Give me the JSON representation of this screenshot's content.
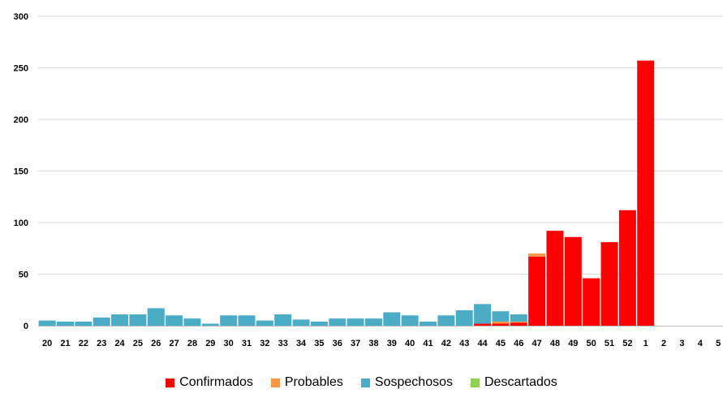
{
  "chart_data": {
    "type": "bar",
    "stacked": true,
    "title": "",
    "xlabel": "",
    "ylabel": "",
    "ylim": [
      0,
      300
    ],
    "yticks": [
      0,
      50,
      100,
      150,
      200,
      250,
      300
    ],
    "grid": true,
    "legend_position": "bottom",
    "categories": [
      "20",
      "21",
      "22",
      "23",
      "24",
      "25",
      "26",
      "27",
      "28",
      "29",
      "30",
      "31",
      "32",
      "33",
      "34",
      "35",
      "36",
      "37",
      "38",
      "39",
      "40",
      "41",
      "42",
      "43",
      "44",
      "45",
      "46",
      "47",
      "48",
      "49",
      "50",
      "51",
      "52",
      "1",
      "2",
      "3",
      "4",
      "5"
    ],
    "series": [
      {
        "name": "Confirmados",
        "color": "#ff0000",
        "values": [
          0,
          0,
          0,
          0,
          0,
          0,
          0,
          0,
          0,
          0,
          0,
          0,
          0,
          0,
          0,
          0,
          0,
          0,
          0,
          0,
          0,
          0,
          0,
          0,
          2,
          2,
          3,
          67,
          92,
          86,
          46,
          81,
          112,
          257,
          0,
          0,
          0,
          0
        ]
      },
      {
        "name": "Probables",
        "color": "#f79646",
        "values": [
          0,
          0,
          0,
          0,
          0,
          0,
          0,
          0,
          0,
          0,
          0,
          0,
          0,
          0,
          0,
          0,
          0,
          0,
          0,
          0,
          0,
          0,
          0,
          0,
          0,
          2,
          1,
          3,
          0,
          0,
          0,
          0,
          0,
          0,
          0,
          0,
          0,
          0
        ]
      },
      {
        "name": "Sospechosos",
        "color": "#4bacc6",
        "values": [
          5,
          4,
          4,
          8,
          11,
          11,
          17,
          10,
          7,
          2,
          10,
          10,
          5,
          11,
          6,
          4,
          7,
          7,
          7,
          13,
          10,
          4,
          10,
          15,
          19,
          10,
          7,
          0,
          0,
          0,
          0,
          0,
          0,
          0,
          0,
          0,
          0,
          0
        ]
      },
      {
        "name": "Descartados",
        "color": "#92d050",
        "values": [
          0,
          0,
          0,
          0,
          0,
          0,
          0,
          0,
          0,
          0,
          0,
          0,
          0,
          0,
          0,
          0,
          0,
          0,
          0,
          0,
          0,
          0,
          0,
          0,
          0,
          0,
          0,
          0,
          0,
          0,
          0,
          0,
          0,
          0,
          0,
          0,
          0,
          0
        ]
      }
    ]
  }
}
